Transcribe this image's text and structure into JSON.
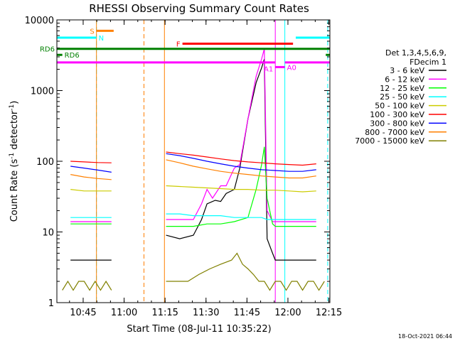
{
  "chart_data": {
    "type": "line",
    "title": "RHESSI Observing Summary Count Rates",
    "xlabel": "Start Time (08-Jul-11 10:35:22)",
    "ylabel_main": "Count Rate (s",
    "ylabel_sup": "-1",
    "ylabel_mid": " detector",
    "ylabel_end": ")",
    "x_unit": "minutes since 10:35:22",
    "xlim": [
      0,
      100
    ],
    "ylim": [
      1,
      10000
    ],
    "y_scale": "log",
    "x_ticks": [
      {
        "t": 9.63,
        "label": "10:45"
      },
      {
        "t": 24.63,
        "label": "11:00"
      },
      {
        "t": 39.63,
        "label": "11:15"
      },
      {
        "t": 54.63,
        "label": "11:30"
      },
      {
        "t": 69.63,
        "label": "11:45"
      },
      {
        "t": 84.63,
        "label": "12:00"
      },
      {
        "t": 99.63,
        "label": "12:15"
      }
    ],
    "y_ticks": [
      {
        "v": 1,
        "label": "1"
      },
      {
        "v": 10,
        "label": "10"
      },
      {
        "v": 100,
        "label": "100"
      },
      {
        "v": 1000,
        "label": "1000"
      },
      {
        "v": 10000,
        "label": "10000"
      }
    ],
    "legend_header": [
      "Det 1,3,4,5,6,9,",
      "FDecim 1"
    ],
    "series": [
      {
        "name": "3 - 6 keV",
        "color": "#000000",
        "x": [
          0,
          5,
          10,
          15,
          20,
          20.8,
          39.4,
          40,
          45,
          50,
          53,
          55,
          58,
          60,
          62,
          65,
          67,
          70,
          73,
          75,
          76,
          77,
          79,
          80,
          85,
          90,
          95,
          100
        ],
        "y": [
          null,
          4,
          4,
          4,
          4,
          null,
          null,
          9,
          8,
          9,
          15,
          25,
          28,
          27,
          35,
          40,
          80,
          400,
          1300,
          2100,
          2800,
          8,
          5,
          4,
          4,
          4,
          4,
          null
        ]
      },
      {
        "name": "6 - 12 keV",
        "color": "#ff00ff",
        "x": [
          0,
          5,
          10,
          15,
          20,
          20.8,
          39.4,
          40,
          45,
          50,
          53,
          55,
          57,
          60,
          62,
          65,
          67,
          70,
          73,
          75,
          76,
          77,
          79,
          80,
          85,
          90,
          95,
          100
        ],
        "y": [
          null,
          14,
          14,
          14,
          14,
          null,
          null,
          15,
          15,
          15,
          25,
          40,
          30,
          45,
          45,
          80,
          90,
          400,
          1600,
          2800,
          3900,
          20,
          14,
          14,
          14,
          14,
          14,
          null
        ]
      },
      {
        "name": "12 - 25 keV",
        "color": "#00ff00",
        "x": [
          0,
          5,
          10,
          15,
          20,
          20.8,
          39.4,
          40,
          45,
          50,
          55,
          60,
          65,
          70,
          73,
          75,
          76,
          77,
          79,
          80,
          85,
          90,
          95,
          100
        ],
        "y": [
          null,
          13,
          13,
          13,
          13,
          null,
          null,
          12,
          12,
          12,
          13,
          13,
          14,
          16,
          40,
          90,
          160,
          30,
          13,
          12,
          12,
          12,
          12,
          null
        ]
      },
      {
        "name": "25 - 50 keV",
        "color": "#00ffff",
        "x": [
          0,
          5,
          10,
          15,
          20,
          20.8,
          39.4,
          40,
          45,
          50,
          55,
          60,
          65,
          70,
          75,
          77,
          80,
          85,
          90,
          95,
          100
        ],
        "y": [
          null,
          16,
          16,
          16,
          16,
          null,
          null,
          18,
          18,
          17,
          17,
          17,
          16,
          16,
          16,
          15,
          15,
          15,
          15,
          15,
          null
        ]
      },
      {
        "name": "50 - 100 keV",
        "color": "#cccc00",
        "x": [
          0,
          5,
          10,
          15,
          20,
          20.8,
          39.4,
          40,
          45,
          50,
          55,
          60,
          65,
          70,
          75,
          80,
          85,
          90,
          95,
          100
        ],
        "y": [
          null,
          40,
          38,
          38,
          38,
          null,
          null,
          45,
          44,
          43,
          42,
          41,
          40,
          40,
          39,
          39,
          38,
          37,
          38,
          null
        ]
      },
      {
        "name": "100 - 300 keV",
        "color": "#ff0000",
        "x": [
          0,
          5,
          10,
          15,
          20,
          20.8,
          39.4,
          40,
          45,
          50,
          55,
          60,
          65,
          70,
          75,
          80,
          85,
          90,
          95,
          100
        ],
        "y": [
          null,
          100,
          98,
          96,
          95,
          null,
          null,
          135,
          128,
          122,
          115,
          108,
          102,
          98,
          95,
          92,
          90,
          88,
          92,
          null
        ]
      },
      {
        "name": "300 - 800 keV",
        "color": "#0000ff",
        "x": [
          0,
          5,
          10,
          15,
          20,
          20.8,
          39.4,
          40,
          45,
          50,
          55,
          60,
          65,
          70,
          75,
          80,
          85,
          90,
          95,
          100
        ],
        "y": [
          null,
          85,
          80,
          75,
          70,
          null,
          null,
          128,
          120,
          110,
          100,
          92,
          85,
          80,
          76,
          74,
          72,
          72,
          76,
          null
        ]
      },
      {
        "name": "800 - 7000 keV",
        "color": "#ff8000",
        "x": [
          0,
          5,
          10,
          15,
          20,
          20.8,
          39.4,
          40,
          45,
          50,
          55,
          60,
          65,
          70,
          75,
          80,
          85,
          90,
          95,
          100
        ],
        "y": [
          null,
          65,
          60,
          57,
          55,
          null,
          null,
          105,
          95,
          85,
          78,
          72,
          68,
          65,
          62,
          60,
          58,
          58,
          62,
          null
        ]
      },
      {
        "name": "7000 - 15000 keV",
        "color": "#808000",
        "x": [
          0,
          2,
          4,
          6,
          8,
          10,
          12,
          14,
          16,
          18,
          20,
          20.8,
          39.4,
          40,
          44,
          48,
          52,
          56,
          60,
          64,
          66,
          68,
          70,
          72,
          74,
          76,
          78,
          80,
          82,
          84,
          86,
          88,
          90,
          92,
          94,
          96,
          98,
          100
        ],
        "y": [
          null,
          1.5,
          2,
          1.5,
          2,
          2,
          1.5,
          2,
          1.5,
          2,
          1.5,
          null,
          null,
          2,
          2,
          2,
          2.5,
          3,
          3.5,
          4,
          5,
          3.5,
          3,
          2.5,
          2,
          2,
          1.5,
          2,
          2,
          1.5,
          2,
          2,
          1.5,
          2,
          2,
          1.5,
          2,
          null
        ]
      }
    ],
    "flags": [
      {
        "label": "S",
        "color": "#ff8000",
        "t0": 14.5,
        "t1": 20.8,
        "level": 7000,
        "label_side": "left"
      },
      {
        "label": "N",
        "color": "#00ffff",
        "t0": 0,
        "t1": 14.5,
        "level": 5600,
        "label_side": "right"
      },
      {
        "label": "N",
        "color": "#00ffff",
        "t0": 87.5,
        "t1": 100,
        "level": 5600,
        "label_side": "none"
      },
      {
        "label": "F",
        "color": "#ff0000",
        "t0": 46,
        "t1": 86.5,
        "level": 4600,
        "label_side": "left"
      },
      {
        "label": "RD6",
        "color": "#008000",
        "t0": 0,
        "t1": 100,
        "level": 3900,
        "label_side": "left"
      },
      {
        "label": "RD6",
        "color": "#008000",
        "t0": 0,
        "t1": 2,
        "level": 3200,
        "label_side": "right"
      },
      {
        "label": "",
        "color": "#008000",
        "t0": 98.5,
        "t1": 100,
        "level": 3200,
        "label_side": "none"
      },
      {
        "label": "A1",
        "color": "#ff00ff",
        "t0": 0,
        "t1": 80,
        "level": 2500,
        "label_side": "none"
      },
      {
        "label": "A0",
        "color": "#ff00ff",
        "t0": 80,
        "t1": 83.5,
        "level": 2150,
        "label_side": "right"
      },
      {
        "label": "A1",
        "color": "#ff00ff",
        "t0": 83.5,
        "t1": 100,
        "level": 2500,
        "label_side": "none"
      }
    ],
    "flag_label_a1": "A1",
    "markers": [
      {
        "t": 0.0,
        "color": "#00ffff",
        "style": "solid"
      },
      {
        "t": 14.5,
        "color": "#00ffff",
        "style": "dashed"
      },
      {
        "t": 14.5,
        "color": "#ff8000",
        "style": "solid"
      },
      {
        "t": 31.9,
        "color": "#ff8000",
        "style": "dashed"
      },
      {
        "t": 39.4,
        "color": "#ff8000",
        "style": "solid"
      },
      {
        "t": 80.0,
        "color": "#ff00ff",
        "style": "solid"
      },
      {
        "t": 83.5,
        "color": "#00ffff",
        "style": "solid"
      },
      {
        "t": 99.2,
        "color": "#00ffff",
        "style": "dashed"
      }
    ],
    "timestamp": "18-Oct-2021 06:44"
  }
}
